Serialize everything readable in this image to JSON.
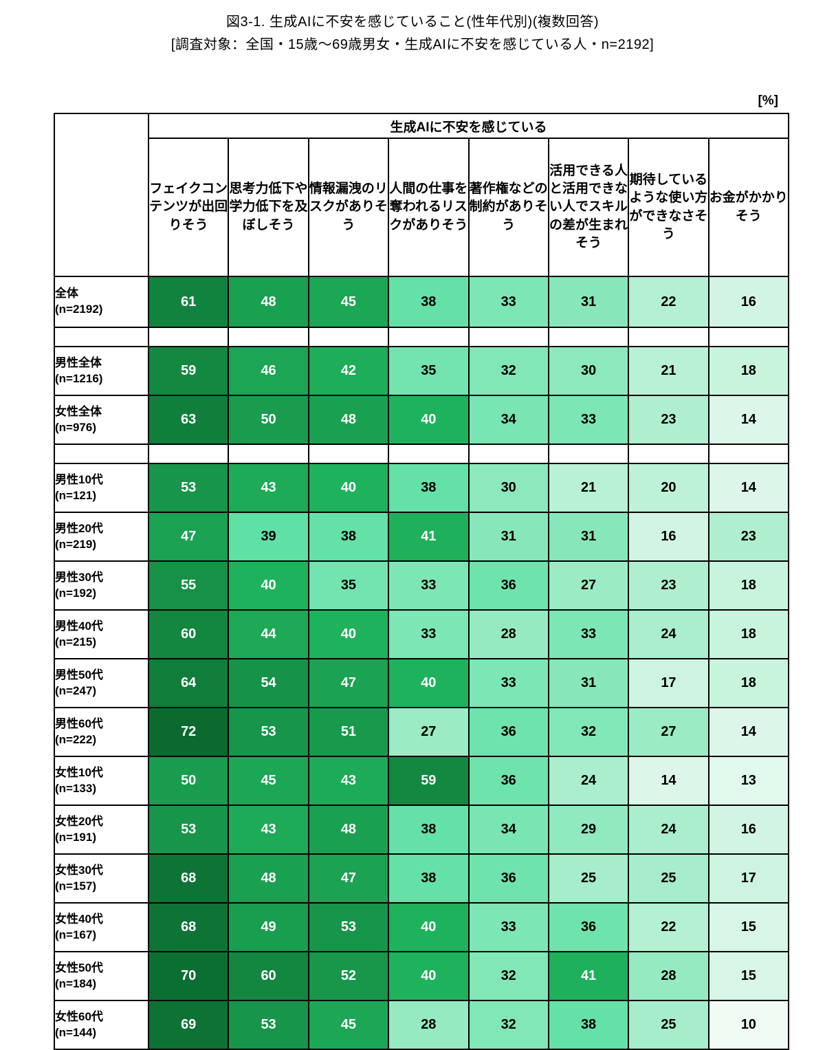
{
  "title": "図3-1. 生成AIに不安を感じていること(性年代別)(複数回答)",
  "subtitle": "[調査対象：全国・15歳～69歳男女・生成AIに不安を感じている人・n=2192]",
  "unit_label": "[%]",
  "chart_data": {
    "type": "heatmap",
    "group_header": "生成AIに不安を感じている",
    "columns": [
      "フェイクコンテンツが出回りそう",
      "思考力低下や学力低下を及ぼしそう",
      "情報漏洩のリスクがありそう",
      "人間の仕事を奪われるリスクがありそう",
      "著作権などの制約がありそう",
      "活用できる人と活用できない人でスキルの差が生まれそう",
      "期待しているような使い方ができなさそう",
      "お金がかかりそう"
    ],
    "rows": [
      {
        "label": "全体",
        "n": "(n=2192)",
        "values": [
          61,
          48,
          45,
          38,
          33,
          31,
          22,
          16
        ],
        "total": true
      },
      {
        "spacer": true
      },
      {
        "label": "男性全体",
        "n": "(n=1216)",
        "values": [
          59,
          46,
          42,
          35,
          32,
          30,
          21,
          18
        ]
      },
      {
        "label": "女性全体",
        "n": "(n=976)",
        "values": [
          63,
          50,
          48,
          40,
          34,
          33,
          23,
          14
        ]
      },
      {
        "spacer": true
      },
      {
        "label": "男性10代",
        "n": "(n=121)",
        "values": [
          53,
          43,
          40,
          38,
          30,
          21,
          20,
          14
        ]
      },
      {
        "label": "男性20代",
        "n": "(n=219)",
        "values": [
          47,
          39,
          38,
          41,
          31,
          31,
          16,
          23
        ]
      },
      {
        "label": "男性30代",
        "n": "(n=192)",
        "values": [
          55,
          40,
          35,
          33,
          36,
          27,
          23,
          18
        ]
      },
      {
        "label": "男性40代",
        "n": "(n=215)",
        "values": [
          60,
          44,
          40,
          33,
          28,
          33,
          24,
          18
        ]
      },
      {
        "label": "男性50代",
        "n": "(n=247)",
        "values": [
          64,
          54,
          47,
          40,
          33,
          31,
          17,
          18
        ]
      },
      {
        "label": "男性60代",
        "n": "(n=222)",
        "values": [
          72,
          53,
          51,
          27,
          36,
          32,
          27,
          14
        ]
      },
      {
        "label": "女性10代",
        "n": "(n=133)",
        "values": [
          50,
          45,
          43,
          59,
          36,
          24,
          14,
          13
        ]
      },
      {
        "label": "女性20代",
        "n": "(n=191)",
        "values": [
          53,
          43,
          48,
          38,
          34,
          29,
          24,
          16
        ]
      },
      {
        "label": "女性30代",
        "n": "(n=157)",
        "values": [
          68,
          48,
          47,
          38,
          36,
          25,
          25,
          17
        ]
      },
      {
        "label": "女性40代",
        "n": "(n=167)",
        "values": [
          68,
          49,
          53,
          40,
          33,
          36,
          22,
          15
        ]
      },
      {
        "label": "女性50代",
        "n": "(n=184)",
        "values": [
          70,
          60,
          52,
          40,
          32,
          41,
          28,
          15
        ]
      },
      {
        "label": "女性60代",
        "n": "(n=144)",
        "values": [
          69,
          53,
          45,
          28,
          32,
          38,
          25,
          10
        ]
      }
    ],
    "color_scale": {
      "low_from_value": 10,
      "low_from_color": "#F0FBF4",
      "low_to_value": 39,
      "low_to_color": "#5FE0A4",
      "high_from_value": 40,
      "high_from_color": "#1FB25C",
      "high_to_value": 72,
      "high_to_color": "#0B6B2F",
      "white_text_threshold": 40,
      "text_light": "#FFFFFF",
      "text_dark": "#000000"
    }
  }
}
